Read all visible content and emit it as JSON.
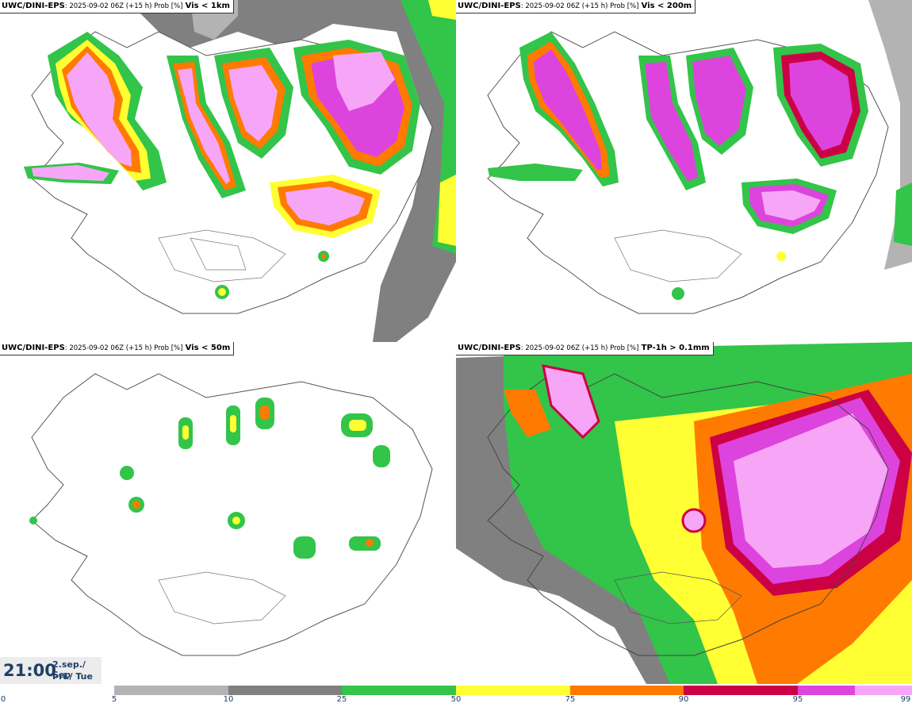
{
  "panels": [
    {
      "id": "vis1km",
      "source": "UWC/DINI-EPS",
      "meta": ": 2025-09-02 06Z (+15 h) Prob [%]",
      "variable": "Vis < 1km"
    },
    {
      "id": "vis200m",
      "source": "UWC/DINI-EPS",
      "meta": ": 2025-09-02 06Z (+15 h) Prob [%]",
      "variable": "Vis < 200m"
    },
    {
      "id": "vis50m",
      "source": "UWC/DINI-EPS",
      "meta": ": 2025-09-02 06Z (+15 h) Prob [%]",
      "variable": "Vis < 50m"
    },
    {
      "id": "tp1h",
      "source": "UWC/DINI-EPS",
      "meta": ": 2025-09-02 06Z (+15 h) Prob [%]",
      "variable": "TP-1h > 0.1mm"
    }
  ],
  "valid_time": {
    "time": "21:00",
    "date": "2.sep./ Sep",
    "day": "Þri./ Tue"
  },
  "legend": {
    "ticks": [
      "0",
      "5",
      "10",
      "25",
      "50",
      "75",
      "90",
      "95",
      "99"
    ],
    "colors": {
      "5-10": "#b3b3b3",
      "10-25": "#808080",
      "25-50": "#33c44a",
      "50-75": "#ffff33",
      "75-90": "#ff7a00",
      "90-95": "#cc0044",
      "95-99": "#dd44dd",
      "99+": "#f7a6f7"
    }
  }
}
